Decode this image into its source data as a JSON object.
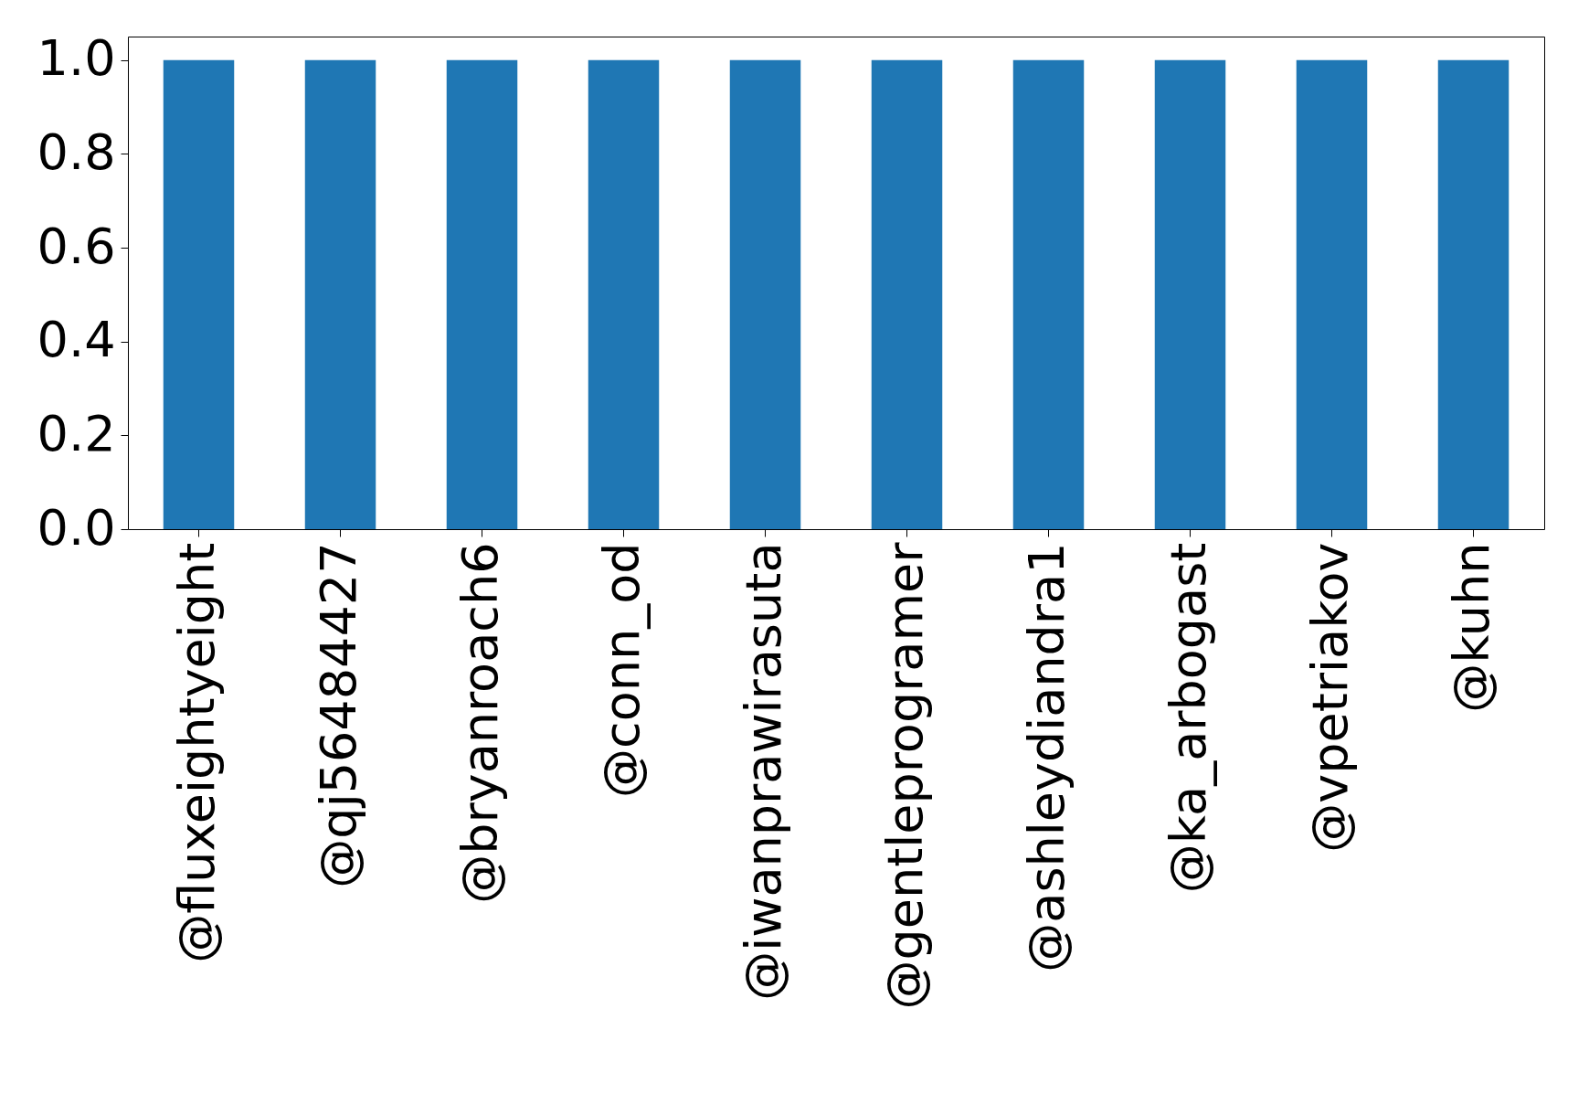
{
  "chart_data": {
    "type": "bar",
    "categories": [
      "@fluxeightyeight",
      "@qj56484427",
      "@bryanroach6",
      "@conn_od",
      "@iwanprawirasuta",
      "@gentleprogramer",
      "@ashleydiandra1",
      "@ka_arbogast",
      "@vpetriakov",
      "@kuhn"
    ],
    "values": [
      1,
      1,
      1,
      1,
      1,
      1,
      1,
      1,
      1,
      1
    ],
    "color": "#1f77b4",
    "ylim": [
      0,
      1.05
    ],
    "yticks": [
      {
        "value": 0,
        "label": "0.0"
      },
      0.2,
      0.4,
      0.6,
      0.8,
      {
        "value": 1,
        "label": "1.0"
      }
    ],
    "grid": false
  }
}
